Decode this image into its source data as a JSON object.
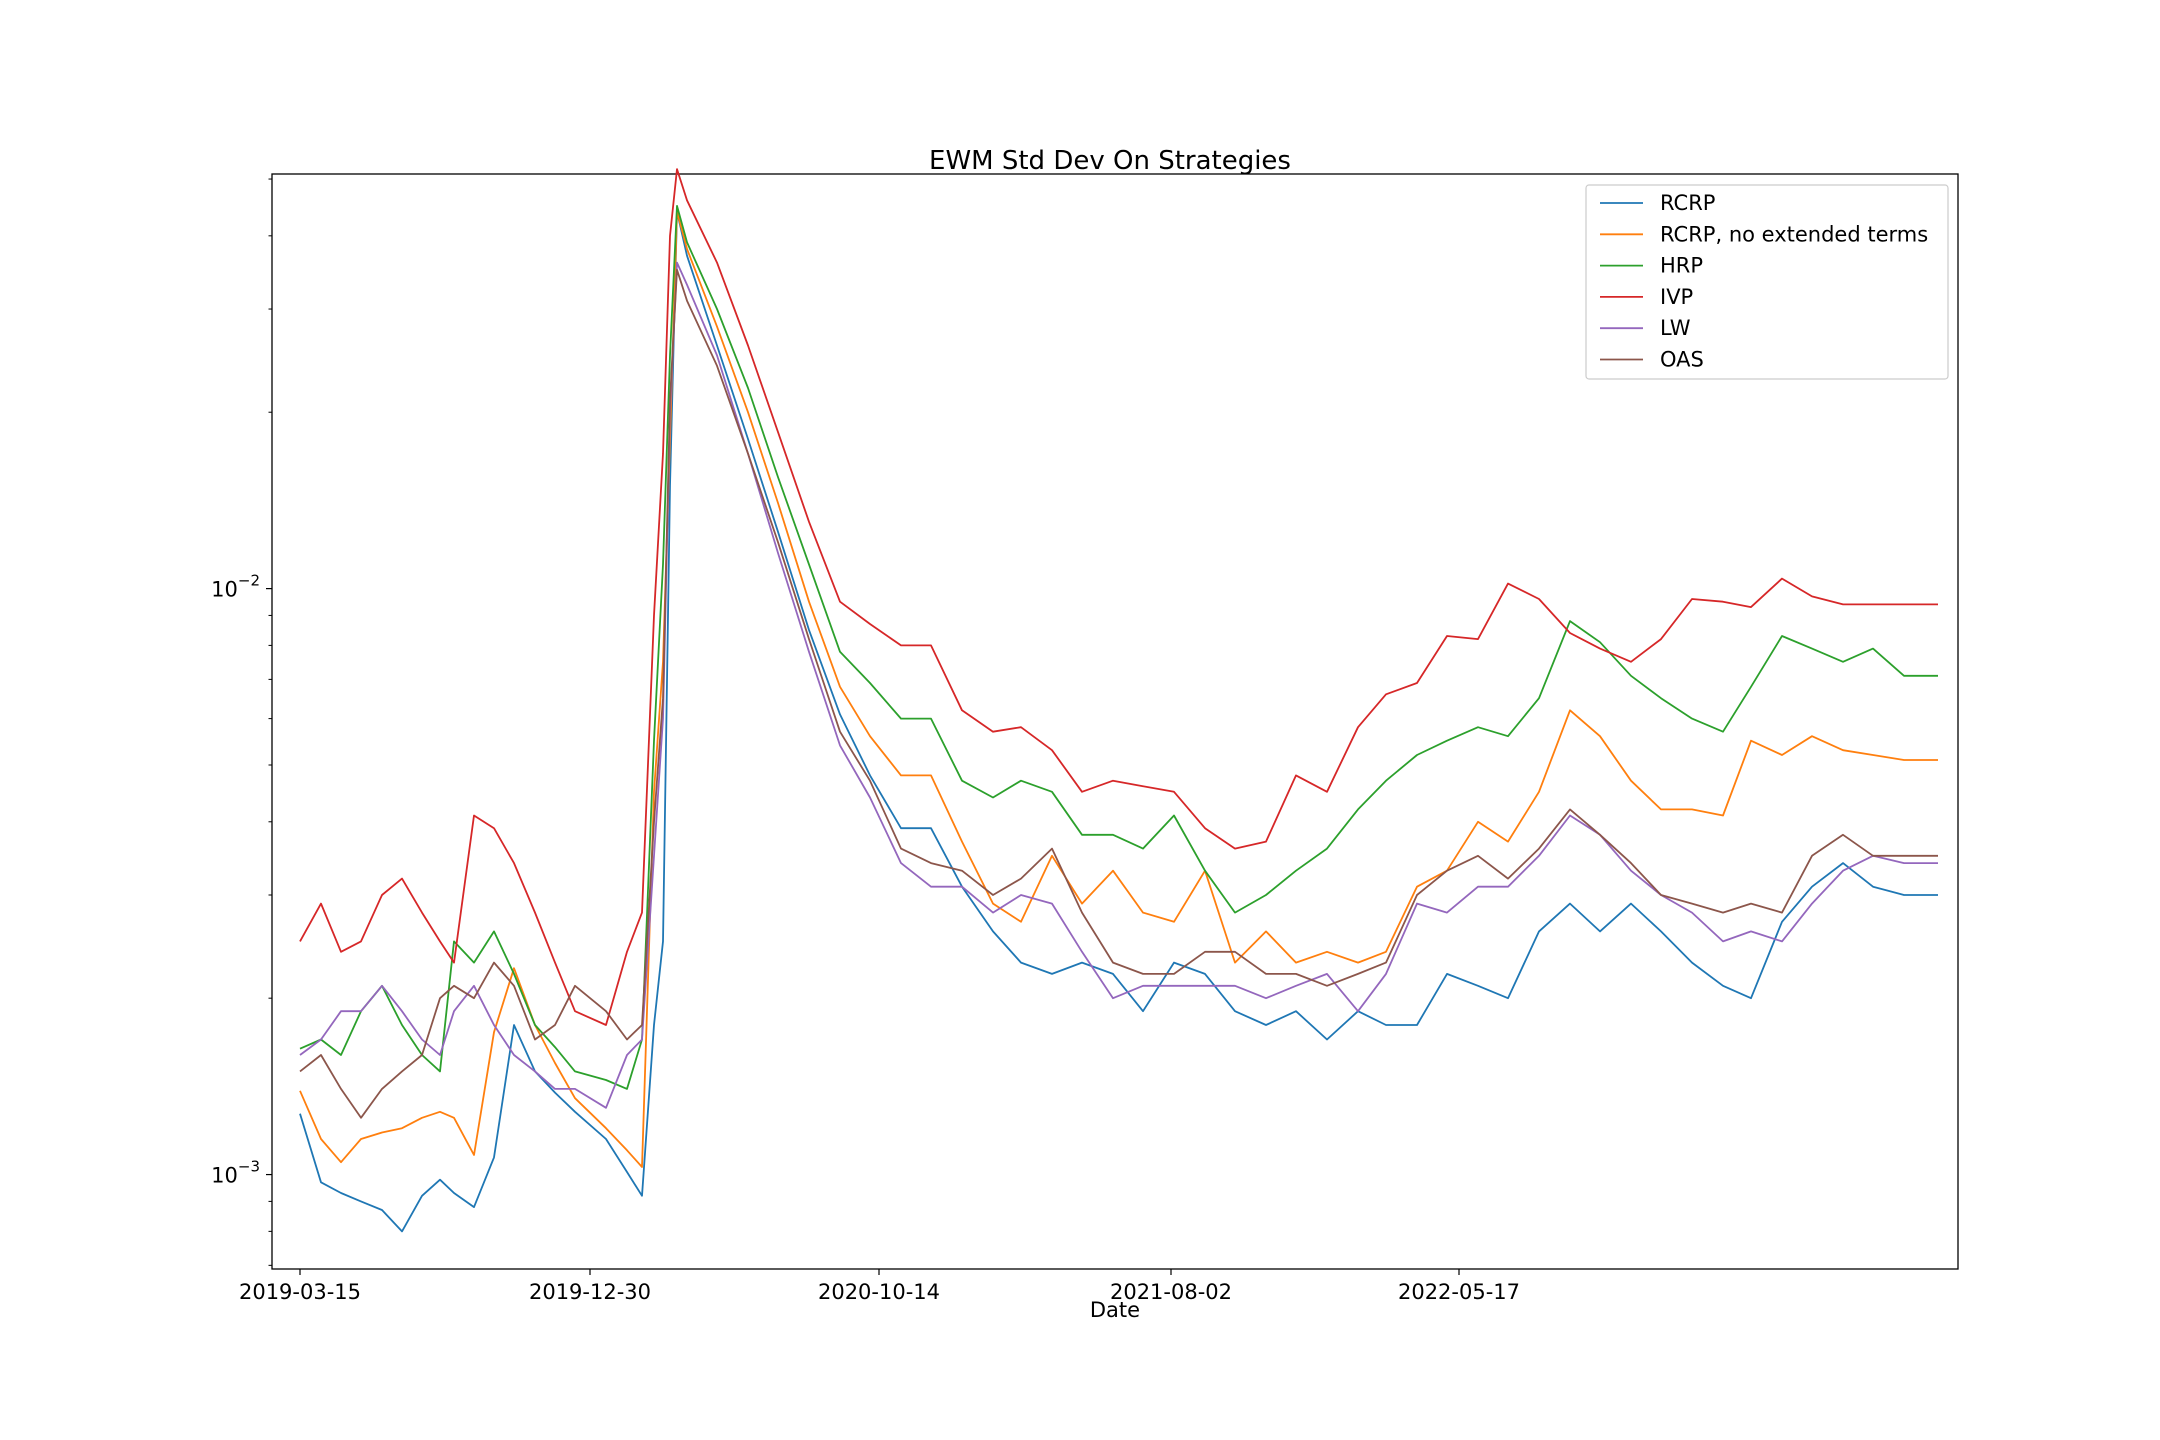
{
  "chart_data": {
    "type": "line",
    "title": "EWM Std Dev On Strategies",
    "xlabel": "Date",
    "ylabel": "",
    "y_scale": "log",
    "ylim": [
      0.00069,
      0.051
    ],
    "xlim": [
      "2019-02-15",
      "2023-09-28"
    ],
    "grid": false,
    "legend_position": "top-right",
    "x_ticks": [
      "2019-03-15",
      "2019-12-30",
      "2020-10-14",
      "2021-08-02",
      "2022-05-17"
    ],
    "y_ticks": [
      {
        "value": 0.01,
        "base": "10",
        "exp": "−2"
      },
      {
        "value": 0.001,
        "base": "10",
        "exp": "−3"
      }
    ],
    "x": [
      "2019-03-15",
      "2019-04-05",
      "2019-04-25",
      "2019-05-15",
      "2019-06-05",
      "2019-06-25",
      "2019-07-15",
      "2019-08-02",
      "2019-08-16",
      "2019-09-05",
      "2019-09-25",
      "2019-10-15",
      "2019-11-05",
      "2019-11-25",
      "2019-12-15",
      "2020-01-15",
      "2020-02-05",
      "2020-02-20",
      "2020-03-03",
      "2020-03-12",
      "2020-03-19",
      "2020-03-26",
      "2020-04-05",
      "2020-05-05",
      "2020-06-05",
      "2020-07-05",
      "2020-08-05",
      "2020-09-05",
      "2020-10-05",
      "2020-11-05",
      "2020-12-05",
      "2021-01-05",
      "2021-02-05",
      "2021-03-05",
      "2021-04-05",
      "2021-05-05",
      "2021-06-05",
      "2021-07-05",
      "2021-08-05",
      "2021-09-05",
      "2021-10-05",
      "2021-11-05",
      "2021-12-05",
      "2022-01-05",
      "2022-02-05",
      "2022-03-05",
      "2022-04-05",
      "2022-05-05",
      "2022-06-05",
      "2022-07-05",
      "2022-08-05",
      "2022-09-05",
      "2022-10-05",
      "2022-11-05",
      "2022-12-05",
      "2023-01-05",
      "2023-02-05",
      "2023-03-05",
      "2023-04-05",
      "2023-05-05",
      "2023-06-05",
      "2023-07-05",
      "2023-08-05",
      "2023-09-08"
    ],
    "series": [
      {
        "name": "RCRP",
        "color": "#1f77b4",
        "values": [
          0.00127,
          0.00097,
          0.00093,
          0.0009,
          0.00087,
          0.0008,
          0.00092,
          0.00098,
          0.00093,
          0.00088,
          0.00107,
          0.0018,
          0.0015,
          0.00138,
          0.00128,
          0.00115,
          0.00101,
          0.00092,
          0.0018,
          0.0025,
          0.015,
          0.044,
          0.037,
          0.026,
          0.018,
          0.0125,
          0.0085,
          0.0061,
          0.0048,
          0.0039,
          0.0039,
          0.0031,
          0.0026,
          0.0023,
          0.0022,
          0.0023,
          0.0022,
          0.0019,
          0.0023,
          0.0022,
          0.0019,
          0.0018,
          0.0019,
          0.0017,
          0.0019,
          0.0018,
          0.0018,
          0.0022,
          0.0021,
          0.002,
          0.0026,
          0.0029,
          0.0026,
          0.0029,
          0.0026,
          0.0023,
          0.0021,
          0.002,
          0.0027,
          0.0031,
          0.0034,
          0.0031,
          0.003,
          0.003
        ]
      },
      {
        "name": "RCRP, no extended terms",
        "color": "#ff7f0e",
        "values": [
          0.00139,
          0.00115,
          0.00105,
          0.00115,
          0.00118,
          0.0012,
          0.00125,
          0.00128,
          0.00125,
          0.00108,
          0.00175,
          0.00225,
          0.0018,
          0.00155,
          0.00135,
          0.0012,
          0.0011,
          0.00103,
          0.0045,
          0.0075,
          0.018,
          0.044,
          0.038,
          0.028,
          0.02,
          0.014,
          0.0095,
          0.0068,
          0.0056,
          0.0048,
          0.0048,
          0.0037,
          0.0029,
          0.0027,
          0.0035,
          0.0029,
          0.0033,
          0.0028,
          0.0027,
          0.0033,
          0.0023,
          0.0026,
          0.0023,
          0.0024,
          0.0023,
          0.0024,
          0.0031,
          0.0033,
          0.004,
          0.0037,
          0.0045,
          0.0062,
          0.0056,
          0.0047,
          0.0042,
          0.0042,
          0.0041,
          0.0055,
          0.0052,
          0.0056,
          0.0053,
          0.0052,
          0.0051,
          0.0051
        ]
      },
      {
        "name": "HRP",
        "color": "#2ca02c",
        "values": [
          0.00164,
          0.0017,
          0.0016,
          0.0019,
          0.0021,
          0.0018,
          0.0016,
          0.0015,
          0.0025,
          0.0023,
          0.0026,
          0.0022,
          0.0018,
          0.00165,
          0.0015,
          0.00145,
          0.0014,
          0.0017,
          0.0055,
          0.011,
          0.025,
          0.045,
          0.039,
          0.03,
          0.022,
          0.0155,
          0.011,
          0.0078,
          0.0069,
          0.006,
          0.006,
          0.0047,
          0.0044,
          0.0047,
          0.0045,
          0.0038,
          0.0038,
          0.0036,
          0.0041,
          0.0033,
          0.0028,
          0.003,
          0.0033,
          0.0036,
          0.0042,
          0.0047,
          0.0052,
          0.0055,
          0.0058,
          0.0056,
          0.0065,
          0.0088,
          0.0081,
          0.0071,
          0.0065,
          0.006,
          0.0057,
          0.0068,
          0.0083,
          0.0079,
          0.0075,
          0.0079,
          0.0071,
          0.0071
        ]
      },
      {
        "name": "IVP",
        "color": "#d62728",
        "values": [
          0.0025,
          0.0029,
          0.0024,
          0.0025,
          0.003,
          0.0032,
          0.0028,
          0.0025,
          0.0023,
          0.0041,
          0.0039,
          0.0034,
          0.0028,
          0.0023,
          0.0019,
          0.0018,
          0.0024,
          0.0028,
          0.009,
          0.017,
          0.04,
          0.052,
          0.046,
          0.036,
          0.026,
          0.0185,
          0.013,
          0.0095,
          0.0087,
          0.008,
          0.008,
          0.0062,
          0.0057,
          0.0058,
          0.0053,
          0.0045,
          0.0047,
          0.0046,
          0.0045,
          0.0039,
          0.0036,
          0.0037,
          0.0048,
          0.0045,
          0.0058,
          0.0066,
          0.0069,
          0.0083,
          0.0082,
          0.0102,
          0.0096,
          0.0084,
          0.0079,
          0.0075,
          0.0082,
          0.0096,
          0.0095,
          0.0093,
          0.0104,
          0.0097,
          0.0094,
          0.0094,
          0.0094,
          0.0094
        ]
      },
      {
        "name": "LW",
        "color": "#9467bd",
        "values": [
          0.0016,
          0.0017,
          0.0019,
          0.0019,
          0.0021,
          0.0019,
          0.0017,
          0.0016,
          0.0019,
          0.0021,
          0.0018,
          0.0016,
          0.0015,
          0.0014,
          0.0014,
          0.0013,
          0.0016,
          0.0017,
          0.0035,
          0.006,
          0.02,
          0.036,
          0.033,
          0.025,
          0.017,
          0.0115,
          0.0078,
          0.0054,
          0.0044,
          0.0034,
          0.0031,
          0.0031,
          0.0028,
          0.003,
          0.0029,
          0.0024,
          0.002,
          0.0021,
          0.0021,
          0.0021,
          0.0021,
          0.002,
          0.0021,
          0.0022,
          0.0019,
          0.0022,
          0.0029,
          0.0028,
          0.0031,
          0.0031,
          0.0035,
          0.0041,
          0.0038,
          0.0033,
          0.003,
          0.0028,
          0.0025,
          0.0026,
          0.0025,
          0.0029,
          0.0033,
          0.0035,
          0.0034,
          0.0034
        ]
      },
      {
        "name": "OAS",
        "color": "#8c564b",
        "values": [
          0.0015,
          0.0016,
          0.0014,
          0.00125,
          0.0014,
          0.0015,
          0.0016,
          0.002,
          0.0021,
          0.002,
          0.0023,
          0.0021,
          0.0017,
          0.0018,
          0.0021,
          0.0019,
          0.0017,
          0.0018,
          0.004,
          0.0065,
          0.021,
          0.035,
          0.031,
          0.024,
          0.017,
          0.012,
          0.0082,
          0.0057,
          0.0047,
          0.0036,
          0.0034,
          0.0033,
          0.003,
          0.0032,
          0.0036,
          0.0028,
          0.0023,
          0.0022,
          0.0022,
          0.0024,
          0.0024,
          0.0022,
          0.0022,
          0.0021,
          0.0022,
          0.0023,
          0.003,
          0.0033,
          0.0035,
          0.0032,
          0.0036,
          0.0042,
          0.0038,
          0.0034,
          0.003,
          0.0029,
          0.0028,
          0.0029,
          0.0028,
          0.0035,
          0.0038,
          0.0035,
          0.0035,
          0.0035
        ]
      }
    ]
  }
}
